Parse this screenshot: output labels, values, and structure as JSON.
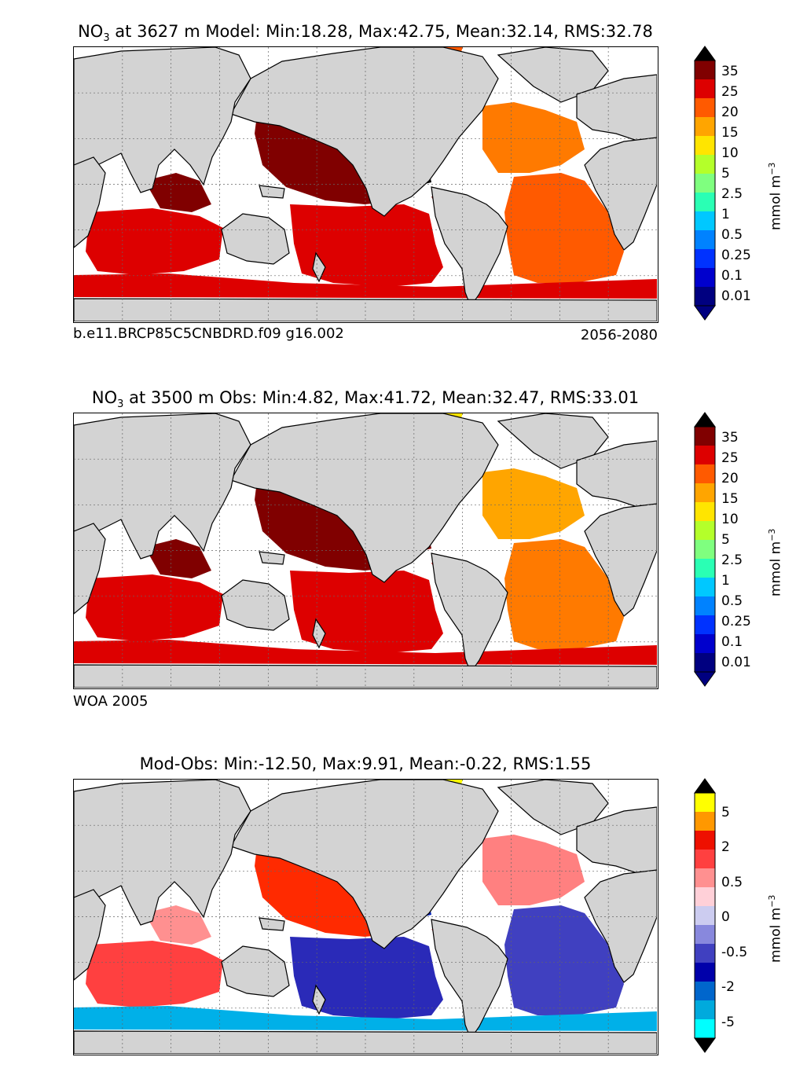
{
  "panels": [
    {
      "id": "model",
      "title_prefix": "NO",
      "title_sub": "3",
      "title_rest": " at 3627 m Model: Min:18.28, Max:42.75, Mean:32.14, RMS:32.78",
      "footer_left": "b.e11.BRCP85C5CNBDRD.f09 g16.002",
      "footer_right": "2056-2080",
      "colorbar": {
        "ticks": [
          "35",
          "25",
          "20",
          "15",
          "10",
          "5",
          "2.5",
          "1",
          "0.5",
          "0.25",
          "0.1",
          "0.01"
        ],
        "colors": [
          "#000080",
          "#0000cd",
          "#0032ff",
          "#0082ff",
          "#00c8ff",
          "#2affb4",
          "#7fff7f",
          "#b4ff2a",
          "#ffe500",
          "#ffa500",
          "#ff5a00",
          "#dd0000",
          "#800000"
        ],
        "over_color": "#000000",
        "under_color": "#000080",
        "unit_base": "mmol m",
        "unit_exp": "−3"
      }
    },
    {
      "id": "obs",
      "title_prefix": "NO",
      "title_sub": "3",
      "title_rest": " at 3500 m Obs: Min:4.82, Max:41.72, Mean:32.47, RMS:33.01",
      "footer_left": "WOA 2005",
      "footer_right": "",
      "colorbar": {
        "ticks": [
          "35",
          "25",
          "20",
          "15",
          "10",
          "5",
          "2.5",
          "1",
          "0.5",
          "0.25",
          "0.1",
          "0.01"
        ],
        "colors": [
          "#000080",
          "#0000cd",
          "#0032ff",
          "#0082ff",
          "#00c8ff",
          "#2affb4",
          "#7fff7f",
          "#b4ff2a",
          "#ffe500",
          "#ffa500",
          "#ff5a00",
          "#dd0000",
          "#800000"
        ],
        "over_color": "#000000",
        "under_color": "#000080",
        "unit_base": "mmol m",
        "unit_exp": "−3"
      }
    },
    {
      "id": "diff",
      "title_prefix": "",
      "title_sub": "",
      "title_rest": "Mod-Obs: Min:-12.50, Max:9.91, Mean:-0.22, RMS:1.55",
      "footer_left": "",
      "footer_right": "",
      "colorbar": {
        "ticks": [
          "5",
          "2",
          "0.5",
          "0",
          "-0.5",
          "-2",
          "-5"
        ],
        "colors": [
          "#00ffff",
          "#00aadd",
          "#0066cc",
          "#0000aa",
          "#4040c0",
          "#8888dd",
          "#ccccf0",
          "#ffd0d8",
          "#ff9090",
          "#ff4040",
          "#ee1000",
          "#ff9800",
          "#ffff00"
        ],
        "over_color": "#000000",
        "under_color": "#000000",
        "unit_base": "mmol m",
        "unit_exp": "−3"
      }
    }
  ],
  "map_colors": {
    "land": "#d3d3d3",
    "missing": "#ffffff",
    "grid": "#666666"
  },
  "chart_data": [
    {
      "type": "heatmap",
      "title": "NO3 at 3627 m Model: Min:18.28, Max:42.75, Mean:32.14, RMS:32.78",
      "colorbar_label": "mmol m-3",
      "levels": [
        0.01,
        0.1,
        0.25,
        0.5,
        1,
        2.5,
        5,
        10,
        15,
        20,
        25,
        35
      ],
      "stats": {
        "min": 18.28,
        "max": 42.75,
        "mean": 32.14,
        "rms": 32.78
      },
      "depth_m": 3627,
      "period": "2056-2080",
      "case": "b.e11.BRCP85C5CNBDRD.f09 g16.002"
    },
    {
      "type": "heatmap",
      "title": "NO3 at 3500 m Obs: Min:4.82, Max:41.72, Mean:32.47, RMS:33.01",
      "colorbar_label": "mmol m-3",
      "levels": [
        0.01,
        0.1,
        0.25,
        0.5,
        1,
        2.5,
        5,
        10,
        15,
        20,
        25,
        35
      ],
      "stats": {
        "min": 4.82,
        "max": 41.72,
        "mean": 32.47,
        "rms": 33.01
      },
      "depth_m": 3500,
      "source": "WOA 2005"
    },
    {
      "type": "heatmap",
      "title": "Mod-Obs: Min:-12.50, Max:9.91, Mean:-0.22, RMS:1.55",
      "colorbar_label": "mmol m-3",
      "levels": [
        -5,
        -2,
        -0.5,
        0,
        0.5,
        2,
        5
      ],
      "stats": {
        "min": -12.5,
        "max": 9.91,
        "mean": -0.22,
        "rms": 1.55
      }
    }
  ]
}
